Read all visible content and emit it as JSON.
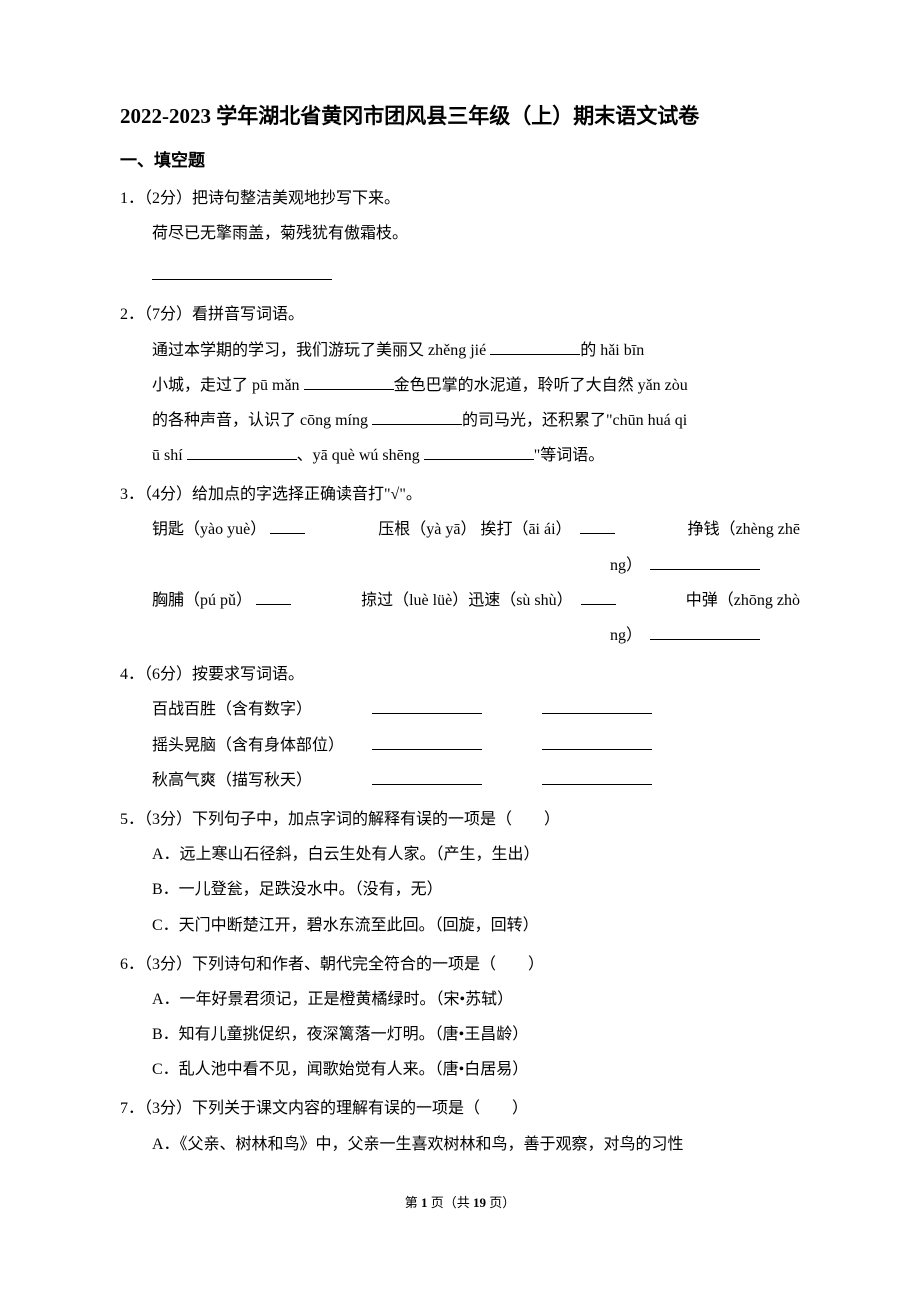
{
  "header": {
    "title": "2022-2023 学年湖北省黄冈市团风县三年级（上）期末语文试卷",
    "section1": "一、填空题"
  },
  "q1": {
    "prompt": "1．（2分）把诗句整洁美观地抄写下来。",
    "line": "荷尽已无擎雨盖，菊残犹有傲霜枝。"
  },
  "q2": {
    "prompt": "2．（7分）看拼音写词语。",
    "l1a": "通过本学期的学习，我们游玩了美丽又 zhěng jié ",
    "l1b": "的 hǎi bīn",
    "l2a": "小城，走过了 pū mǎn ",
    "l2b": "金色巴掌的水泥道，聆听了大自然 yǎn zòu",
    "l3a": "的各种声音，认识了 cōng míng ",
    "l3b": "的司马光，还积累了\"chūn huá qi",
    "l4a": "ū shí ",
    "l4b": "、yā què wú shēng ",
    "l4c": "\"等词语。"
  },
  "q3": {
    "prompt": "3．（4分）给加点的字选择正确读音打\"√\"。",
    "r1a": "钥匙（yào yuè）",
    "r1b": "压根（yà yā）  挨打（āi ái）",
    "r1c": "挣钱（zhèng zhē",
    "r1c2": "ng）",
    "r2a": "胸脯（pú pǔ）",
    "r2b": "掠过（luè lüè）迅速（sù shù）",
    "r2c": "中弹（zhōng zhò",
    "r2c2": "ng）"
  },
  "q4": {
    "prompt": "4．（6分）按要求写词语。",
    "r1": "百战百胜（含有数字）",
    "r2": "摇头晃脑（含有身体部位）",
    "r3": "秋高气爽（描写秋天）"
  },
  "q5": {
    "prompt": "5．（3分）下列句子中，加点字词的解释有误的一项是（　　）",
    "a": "A．远上寒山石径斜，白云生处有人家。（产生，生出）",
    "b": "B．一儿登瓮，足跌没水中。（没有，无）",
    "c": "C．天门中断楚江开，碧水东流至此回。（回旋，回转）"
  },
  "q6": {
    "prompt": "6．（3分）下列诗句和作者、朝代完全符合的一项是（　　）",
    "a": "A．一年好景君须记，正是橙黄橘绿时。（宋•苏轼）",
    "b": "B．知有儿童挑促织，夜深篱落一灯明。（唐•王昌龄）",
    "c": "C．乱人池中看不见，闻歌始觉有人来。（唐•白居易）"
  },
  "q7": {
    "prompt": "7．（3分）下列关于课文内容的理解有误的一项是（　　）",
    "a": "A．《父亲、树林和鸟》中，父亲一生喜欢树林和鸟，善于观察，对鸟的习性"
  },
  "footer": {
    "page_label_a": "第",
    "page_current": "1",
    "page_label_b": "页（共",
    "page_total": "19",
    "page_label_c": "页）"
  }
}
